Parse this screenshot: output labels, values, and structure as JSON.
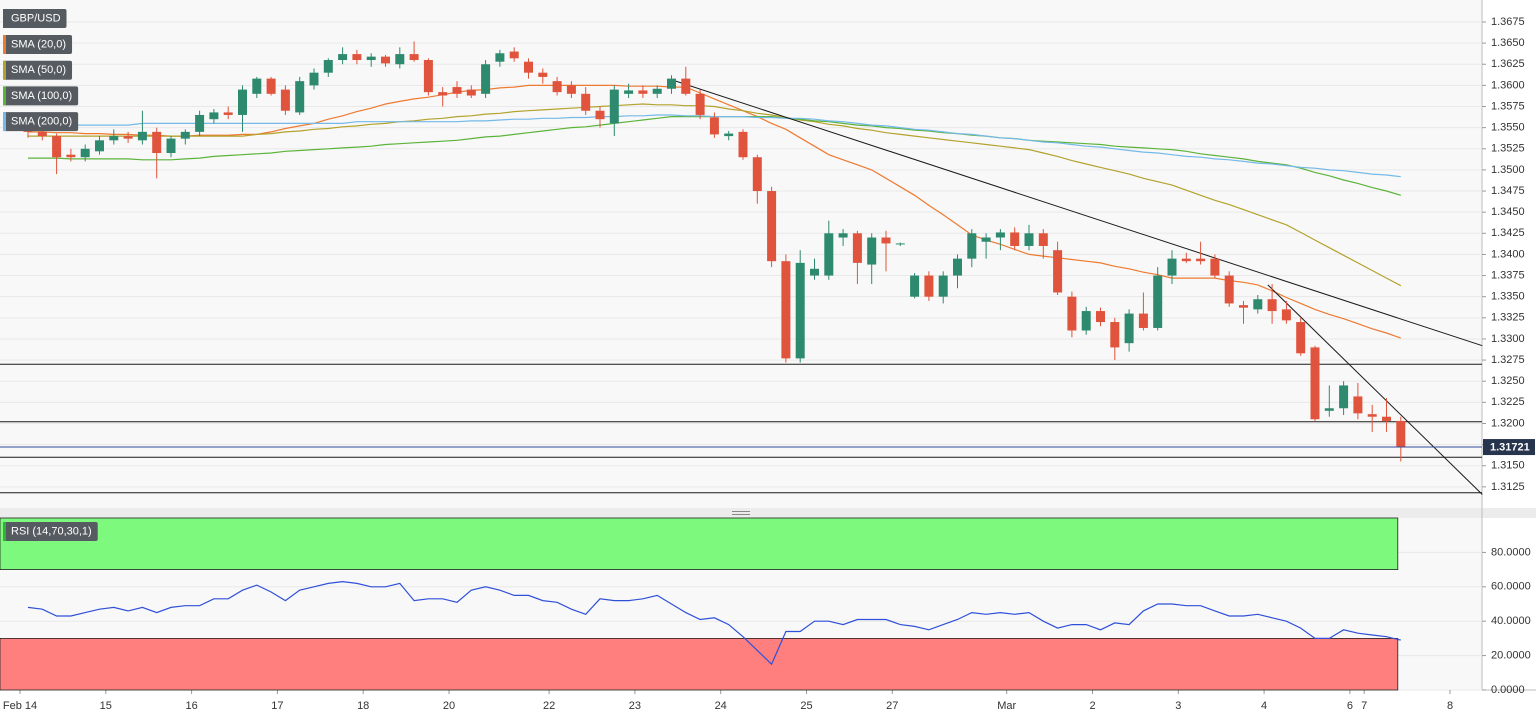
{
  "chart_data": {
    "type": "candlestick",
    "symbol": "GBP/USD",
    "categories": [
      "Feb 14",
      null,
      null,
      null,
      null,
      null,
      "15",
      null,
      null,
      null,
      null,
      null,
      "16",
      null,
      null,
      null,
      null,
      null,
      "17",
      null,
      null,
      null,
      null,
      null,
      "18",
      null,
      null,
      null,
      null,
      null,
      "20",
      null,
      null,
      null,
      null,
      null,
      null,
      "22",
      null,
      null,
      null,
      null,
      null,
      "23",
      null,
      null,
      null,
      null,
      null,
      "24",
      null,
      null,
      null,
      null,
      null,
      "25",
      null,
      null,
      null,
      null,
      null,
      "27",
      null,
      null,
      null,
      null,
      null,
      null,
      null,
      "Mar",
      null,
      null,
      null,
      null,
      null,
      "2",
      null,
      null,
      null,
      null,
      null,
      "3",
      null,
      null,
      null,
      null,
      null,
      "4",
      null,
      null,
      null,
      null,
      null,
      "6",
      "7",
      null,
      null,
      null,
      null,
      null,
      "8"
    ],
    "ohlc": [
      [
        1.356,
        1.3565,
        1.3538,
        1.3545
      ],
      [
        1.3545,
        1.355,
        1.3535,
        1.354
      ],
      [
        1.354,
        1.3543,
        1.3495,
        1.3515
      ],
      [
        1.3518,
        1.3525,
        1.351,
        1.3515
      ],
      [
        1.3515,
        1.353,
        1.351,
        1.3525
      ],
      [
        1.3522,
        1.354,
        1.3518,
        1.3535
      ],
      [
        1.3535,
        1.3548,
        1.353,
        1.354
      ],
      [
        1.354,
        1.3545,
        1.3532,
        1.3537
      ],
      [
        1.3535,
        1.357,
        1.353,
        1.3545
      ],
      [
        1.3545,
        1.355,
        1.349,
        1.352
      ],
      [
        1.352,
        1.354,
        1.3515,
        1.3537
      ],
      [
        1.3537,
        1.3548,
        1.353,
        1.3545
      ],
      [
        1.3545,
        1.357,
        1.354,
        1.3565
      ],
      [
        1.356,
        1.3572,
        1.3555,
        1.3568
      ],
      [
        1.3568,
        1.3575,
        1.356,
        1.3565
      ],
      [
        1.3565,
        1.36,
        1.3545,
        1.3595
      ],
      [
        1.359,
        1.361,
        1.3585,
        1.3608
      ],
      [
        1.3608,
        1.361,
        1.3588,
        1.359
      ],
      [
        1.3595,
        1.36,
        1.3565,
        1.357
      ],
      [
        1.3568,
        1.361,
        1.3565,
        1.3605
      ],
      [
        1.36,
        1.362,
        1.3595,
        1.3615
      ],
      [
        1.3615,
        1.3632,
        1.361,
        1.363
      ],
      [
        1.363,
        1.3645,
        1.3625,
        1.3637
      ],
      [
        1.3637,
        1.3642,
        1.3625,
        1.363
      ],
      [
        1.363,
        1.3638,
        1.3622,
        1.3634
      ],
      [
        1.3634,
        1.3636,
        1.3622,
        1.3626
      ],
      [
        1.3625,
        1.3645,
        1.362,
        1.3637
      ],
      [
        1.3637,
        1.3652,
        1.3628,
        1.363
      ],
      [
        1.363,
        1.3632,
        1.3588,
        1.3592
      ],
      [
        1.3592,
        1.3598,
        1.3575,
        1.3588
      ],
      [
        1.3598,
        1.3605,
        1.3585,
        1.359
      ],
      [
        1.3595,
        1.36,
        1.3585,
        1.3588
      ],
      [
        1.359,
        1.363,
        1.3585,
        1.3625
      ],
      [
        1.3628,
        1.3642,
        1.3622,
        1.3638
      ],
      [
        1.364,
        1.3645,
        1.3628,
        1.3632
      ],
      [
        1.3628,
        1.3632,
        1.3608,
        1.3615
      ],
      [
        1.3615,
        1.362,
        1.3602,
        1.361
      ],
      [
        1.3605,
        1.361,
        1.3588,
        1.3592
      ],
      [
        1.36,
        1.3605,
        1.3585,
        1.359
      ],
      [
        1.359,
        1.3598,
        1.3565,
        1.357
      ],
      [
        1.357,
        1.3575,
        1.355,
        1.356
      ],
      [
        1.3555,
        1.36,
        1.354,
        1.3595
      ],
      [
        1.359,
        1.3602,
        1.3585,
        1.3594
      ],
      [
        1.3594,
        1.36,
        1.3585,
        1.359
      ],
      [
        1.359,
        1.36,
        1.3585,
        1.3596
      ],
      [
        1.3596,
        1.3612,
        1.359,
        1.3608
      ],
      [
        1.3608,
        1.3622,
        1.3588,
        1.359
      ],
      [
        1.359,
        1.3595,
        1.356,
        1.3565
      ],
      [
        1.3562,
        1.3568,
        1.3538,
        1.3542
      ],
      [
        1.354,
        1.3546,
        1.3535,
        1.3543
      ],
      [
        1.3545,
        1.3548,
        1.3512,
        1.3515
      ],
      [
        1.3515,
        1.3518,
        1.346,
        1.3475
      ],
      [
        1.3475,
        1.348,
        1.3385,
        1.3392
      ],
      [
        1.3392,
        1.34,
        1.3272,
        1.3277
      ],
      [
        1.3277,
        1.3405,
        1.3272,
        1.339
      ],
      [
        1.3375,
        1.3395,
        1.337,
        1.3383
      ],
      [
        1.3375,
        1.344,
        1.337,
        1.3425
      ],
      [
        1.342,
        1.343,
        1.341,
        1.3425
      ],
      [
        1.3425,
        1.3428,
        1.3365,
        1.339
      ],
      [
        1.3388,
        1.3425,
        1.3365,
        1.342
      ],
      [
        1.342,
        1.3428,
        1.338,
        1.3413
      ],
      [
        1.3412,
        1.3414,
        1.341,
        1.3413
      ],
      [
        1.335,
        1.3378,
        1.3348,
        1.3375
      ],
      [
        1.3375,
        1.338,
        1.3345,
        1.335
      ],
      [
        1.335,
        1.338,
        1.3342,
        1.3375
      ],
      [
        1.3375,
        1.34,
        1.336,
        1.3395
      ],
      [
        1.3395,
        1.343,
        1.3385,
        1.3425
      ],
      [
        1.3415,
        1.3425,
        1.3395,
        1.342
      ],
      [
        1.342,
        1.343,
        1.3405,
        1.3426
      ],
      [
        1.3426,
        1.3432,
        1.3405,
        1.341
      ],
      [
        1.341,
        1.3435,
        1.3405,
        1.3425
      ],
      [
        1.3425,
        1.343,
        1.3395,
        1.341
      ],
      [
        1.3405,
        1.3415,
        1.3352,
        1.3355
      ],
      [
        1.335,
        1.3356,
        1.3302,
        1.331
      ],
      [
        1.331,
        1.3338,
        1.3305,
        1.3333
      ],
      [
        1.3333,
        1.3337,
        1.3315,
        1.332
      ],
      [
        1.332,
        1.3325,
        1.3275,
        1.329
      ],
      [
        1.3295,
        1.3335,
        1.3285,
        1.333
      ],
      [
        1.333,
        1.3355,
        1.331,
        1.3313
      ],
      [
        1.3313,
        1.3385,
        1.331,
        1.3375
      ],
      [
        1.3375,
        1.3405,
        1.3365,
        1.3395
      ],
      [
        1.3395,
        1.3402,
        1.339,
        1.3392
      ],
      [
        1.3395,
        1.3415,
        1.3388,
        1.3392
      ],
      [
        1.3395,
        1.34,
        1.3372,
        1.3375
      ],
      [
        1.3375,
        1.338,
        1.3338,
        1.3342
      ],
      [
        1.334,
        1.3345,
        1.3318,
        1.3337
      ],
      [
        1.3335,
        1.3352,
        1.333,
        1.3347
      ],
      [
        1.3347,
        1.3365,
        1.3318,
        1.3333
      ],
      [
        1.3335,
        1.3345,
        1.3318,
        1.3322
      ],
      [
        1.332,
        1.3325,
        1.328,
        1.3283
      ],
      [
        1.329,
        1.3292,
        1.3202,
        1.3205
      ],
      [
        1.3215,
        1.3245,
        1.3208,
        1.3218
      ],
      [
        1.3218,
        1.325,
        1.321,
        1.3245
      ],
      [
        1.3232,
        1.3248,
        1.3205,
        1.3212
      ],
      [
        1.3211,
        1.3222,
        1.319,
        1.3208
      ],
      [
        1.3208,
        1.323,
        1.319,
        1.3203
      ],
      [
        1.3203,
        1.3208,
        1.3155,
        1.3172
      ],
      null,
      null,
      null,
      null
    ],
    "up_color": "#2e8a6e",
    "down_color": "#e0533c",
    "series": [
      {
        "name": "SMA (20,0)",
        "color": "#ee7a30",
        "values": [
          1.3545,
          1.3545,
          1.3544,
          1.3544,
          1.3543,
          1.3543,
          1.3542,
          1.3542,
          1.3541,
          1.3541,
          1.354,
          1.354,
          1.3541,
          1.3541,
          1.3541,
          1.3542,
          1.3542,
          1.3545,
          1.3549,
          1.3552,
          1.3555,
          1.356,
          1.3564,
          1.3569,
          1.3573,
          1.3578,
          1.3581,
          1.3584,
          1.3586,
          1.3589,
          1.3592,
          1.3594,
          1.3595,
          1.3597,
          1.3598,
          1.36,
          1.36,
          1.36,
          1.36,
          1.36,
          1.36,
          1.36,
          1.3599,
          1.3599,
          1.3599,
          1.3598,
          1.3598,
          1.3591,
          1.3584,
          1.3577,
          1.357,
          1.3563,
          1.3555,
          1.3548,
          1.3538,
          1.3528,
          1.3518,
          1.3512,
          1.3506,
          1.35,
          1.349,
          1.348,
          1.347,
          1.3458,
          1.3447,
          1.3435,
          1.3423,
          1.3417,
          1.3412,
          1.3406,
          1.34,
          1.3398,
          1.3396,
          1.3394,
          1.3392,
          1.339,
          1.3386,
          1.3383,
          1.3379,
          1.3376,
          1.3372,
          1.3372,
          1.3372,
          1.3372,
          1.3369,
          1.3367,
          1.3364,
          1.3357,
          1.3349,
          1.3342,
          1.3335,
          1.3329,
          1.3324,
          1.3318,
          1.3312,
          1.3307,
          1.3301,
          null,
          null,
          null,
          null
        ]
      },
      {
        "name": "SMA (50,0)",
        "color": "#b3a22c",
        "values": [
          1.354,
          1.354,
          1.354,
          1.354,
          1.354,
          1.354,
          1.354,
          1.354,
          1.354,
          1.354,
          1.354,
          1.354,
          1.354,
          1.354,
          1.354,
          1.354,
          1.3542,
          1.3543,
          1.3545,
          1.3546,
          1.3548,
          1.3549,
          1.3551,
          1.3552,
          1.3554,
          1.3555,
          1.3557,
          1.3558,
          1.356,
          1.3561,
          1.3563,
          1.3564,
          1.3566,
          1.3567,
          1.3569,
          1.357,
          1.3571,
          1.3572,
          1.3573,
          1.3574,
          1.3575,
          1.3576,
          1.3577,
          1.3578,
          1.3577,
          1.3577,
          1.3576,
          1.3576,
          1.3575,
          1.3572,
          1.357,
          1.3567,
          1.3565,
          1.3562,
          1.3559,
          1.3557,
          1.3554,
          1.3552,
          1.3549,
          1.3547,
          1.3544,
          1.3542,
          1.354,
          1.3538,
          1.3536,
          1.3534,
          1.3532,
          1.353,
          1.3528,
          1.3526,
          1.3524,
          1.352,
          1.3516,
          1.3511,
          1.3507,
          1.3503,
          1.3499,
          1.3495,
          1.349,
          1.3486,
          1.3482,
          1.3476,
          1.347,
          1.3464,
          1.3459,
          1.3453,
          1.3447,
          1.3441,
          1.3435,
          1.3426,
          1.3417,
          1.3408,
          1.3399,
          1.339,
          1.3381,
          1.3372,
          1.3363,
          null,
          null,
          null,
          null
        ]
      },
      {
        "name": "SMA (100,0)",
        "color": "#5cb33a",
        "values": [
          1.3514,
          1.3514,
          1.3514,
          1.3513,
          1.3513,
          1.3513,
          1.3513,
          1.3513,
          1.3512,
          1.3512,
          1.3512,
          1.3513,
          1.3514,
          1.3516,
          1.3517,
          1.3518,
          1.3519,
          1.352,
          1.3522,
          1.3523,
          1.3524,
          1.3525,
          1.3526,
          1.3527,
          1.3528,
          1.353,
          1.3531,
          1.3532,
          1.3533,
          1.3534,
          1.3535,
          1.3537,
          1.3539,
          1.354,
          1.3542,
          1.3544,
          1.3546,
          1.3548,
          1.355,
          1.3551,
          1.3553,
          1.3555,
          1.3557,
          1.3559,
          1.3561,
          1.3563,
          1.3563,
          1.3563,
          1.3563,
          1.3563,
          1.3563,
          1.3563,
          1.3563,
          1.3561,
          1.356,
          1.3558,
          1.3557,
          1.3555,
          1.3553,
          1.3552,
          1.355,
          1.3549,
          1.3547,
          1.3546,
          1.3544,
          1.3543,
          1.3541,
          1.354,
          1.3538,
          1.3537,
          1.3535,
          1.3534,
          1.3533,
          1.3532,
          1.3531,
          1.353,
          1.3528,
          1.3527,
          1.3526,
          1.3525,
          1.3524,
          1.3522,
          1.3519,
          1.3517,
          1.3515,
          1.3513,
          1.351,
          1.3508,
          1.3506,
          1.3502,
          1.3497,
          1.3493,
          1.3488,
          1.3484,
          1.3479,
          1.3475,
          1.347,
          null,
          null,
          null,
          null
        ]
      },
      {
        "name": "SMA (200,0)",
        "color": "#74b9e8",
        "values": [
          1.3553,
          1.3553,
          1.3553,
          1.3553,
          1.3553,
          1.3553,
          1.3553,
          1.3553,
          1.3555,
          1.3555,
          1.3555,
          1.3555,
          1.3555,
          1.3555,
          1.3555,
          1.3555,
          1.3555,
          1.3555,
          1.3555,
          1.3555,
          1.3555,
          1.3555,
          1.3555,
          1.3557,
          1.3557,
          1.3557,
          1.3557,
          1.3557,
          1.3557,
          1.3557,
          1.3557,
          1.3558,
          1.3558,
          1.3559,
          1.356,
          1.356,
          1.3561,
          1.3561,
          1.3562,
          1.3562,
          1.3563,
          1.3563,
          1.3564,
          1.3564,
          1.3565,
          1.3565,
          1.3564,
          1.3564,
          1.3563,
          1.3563,
          1.3563,
          1.3562,
          1.3562,
          1.3561,
          1.3561,
          1.356,
          1.3558,
          1.3557,
          1.3555,
          1.3553,
          1.3552,
          1.355,
          1.3548,
          1.3547,
          1.3545,
          1.3543,
          1.3542,
          1.354,
          1.3538,
          1.3537,
          1.3535,
          1.3533,
          1.3532,
          1.353,
          1.3528,
          1.3527,
          1.3525,
          1.3523,
          1.3521,
          1.352,
          1.3518,
          1.3516,
          1.3515,
          1.3513,
          1.3512,
          1.351,
          1.3508,
          1.3507,
          1.3505,
          1.3503,
          1.3502,
          1.35,
          1.3499,
          1.3497,
          1.3495,
          1.3494,
          1.3492,
          null,
          null,
          null,
          null
        ]
      }
    ],
    "ylim": [
      1.31,
      1.3701
    ],
    "yticks": [
      {
        "value": 1.315,
        "label": "1.3150"
      },
      1.3175,
      {
        "value": 1.32,
        "label": "1.3200"
      },
      1.3225,
      {
        "value": 1.325,
        "label": "1.3250"
      },
      1.3275,
      {
        "value": 1.33,
        "label": "1.3300"
      },
      1.3325,
      {
        "value": 1.335,
        "label": "1.3350"
      },
      1.3375,
      {
        "value": 1.34,
        "label": "1.3400"
      },
      1.3425,
      {
        "value": 1.345,
        "label": "1.3450"
      },
      1.3475,
      {
        "value": 1.35,
        "label": "1.3500"
      },
      1.3525,
      {
        "value": 1.355,
        "label": "1.3550"
      },
      1.3575,
      {
        "value": 1.36,
        "label": "1.3600"
      },
      1.3625,
      {
        "value": 1.365,
        "label": "1.3650"
      },
      1.3675,
      1.3125
    ],
    "grid": true,
    "hlines": [
      1.327,
      1.3202,
      1.316,
      1.3118
    ],
    "trendlines": [
      [
        [
          45.3,
          1.3605
        ],
        [
          101.7,
          1.3292
        ]
      ],
      [
        [
          86.7,
          1.3364
        ],
        [
          101.7,
          1.3116
        ]
      ]
    ],
    "last_price": 1.31721,
    "rsi": {
      "name": "RSI (14,70,30,1)",
      "color": "#2f50d8",
      "values": [
        48,
        47,
        43,
        43,
        45,
        47,
        48,
        46,
        48,
        45,
        48,
        49,
        49,
        53,
        53,
        58,
        61,
        57,
        52,
        58,
        60,
        62,
        63,
        62,
        60,
        60,
        62,
        52,
        53,
        53,
        51,
        58,
        60,
        58,
        55,
        55,
        52,
        51,
        47,
        44,
        53,
        52,
        52,
        53,
        55,
        50,
        45,
        41,
        42,
        38,
        31,
        23,
        15,
        34,
        34,
        40,
        40,
        38,
        41,
        41,
        41,
        38,
        37,
        35,
        38,
        41,
        45,
        44,
        45,
        44,
        45,
        40,
        36,
        38,
        38,
        35,
        39,
        38,
        46,
        50,
        50,
        49,
        49,
        46,
        43,
        43,
        44,
        42,
        40,
        36,
        30,
        30,
        35,
        33,
        32,
        31,
        29,
        null,
        null,
        null,
        null
      ],
      "ylim": [
        0,
        100
      ],
      "yticks": [
        {
          "value": 80,
          "label": "80.0000"
        },
        {
          "value": 60,
          "label": "60.0000"
        },
        {
          "value": 40,
          "label": "40.0000"
        },
        {
          "value": 20,
          "label": "20.0000"
        },
        {
          "value": 0,
          "label": "0.0000"
        }
      ],
      "overbought": 70,
      "oversold": 30,
      "overbought_color": "#7dfa7d",
      "oversold_color": "#ff7f7f"
    }
  }
}
